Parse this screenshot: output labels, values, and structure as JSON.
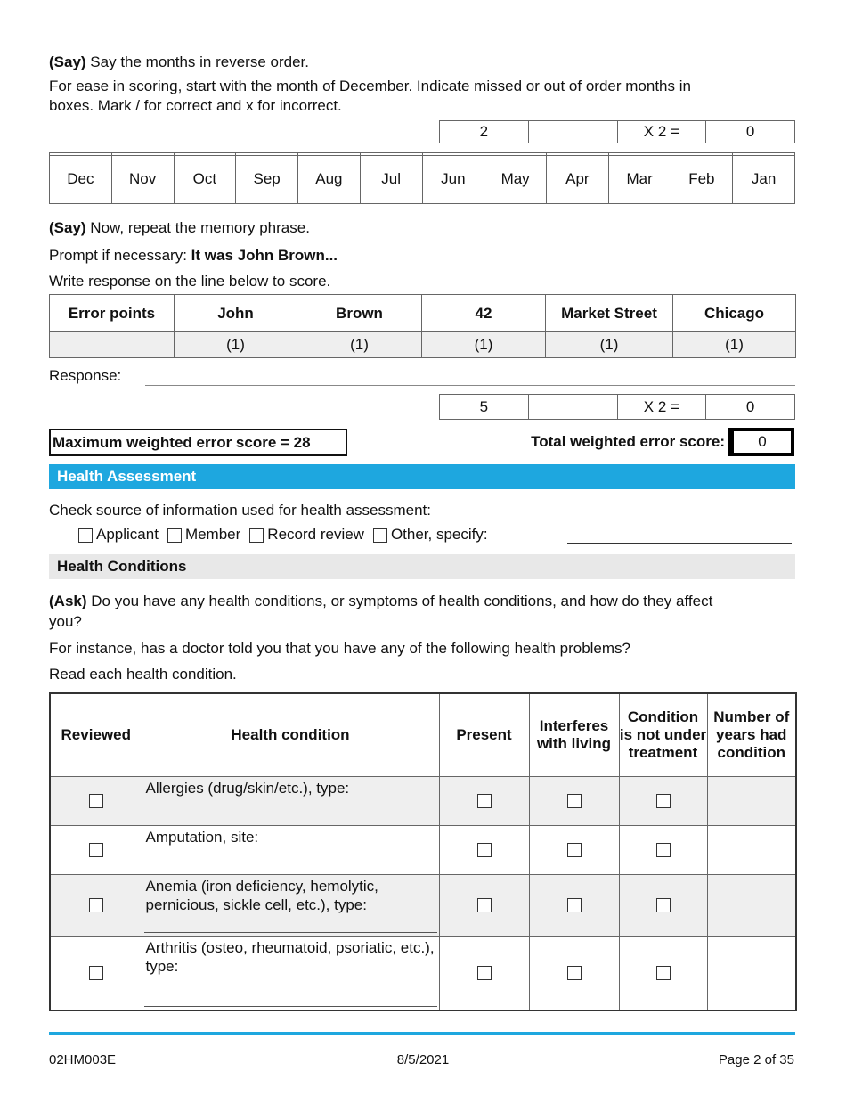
{
  "intro": {
    "say_label": "(Say)",
    "say_text": " Say the months in reverse order.",
    "instruction_line1": "For ease in scoring, start with the month of December. Indicate missed or out of order months in",
    "instruction_line2": "boxes. Mark / for correct and x for incorrect."
  },
  "months_score": {
    "weight": "2",
    "errors": "",
    "multiplier": "X 2 =",
    "result": "0"
  },
  "months": [
    "Dec",
    "Nov",
    "Oct",
    "Sep",
    "Aug",
    "Jul",
    "Jun",
    "May",
    "Apr",
    "Mar",
    "Feb",
    "Jan"
  ],
  "memory": {
    "say_label": "(Say)",
    "say_text": " Now, repeat the memory phrase.",
    "prompt_text": "Prompt if necessary:  ",
    "prompt_bold": "It was John Brown...",
    "write_text": "Write response on the line below to score."
  },
  "error_table": {
    "headers": [
      "Error points",
      "John",
      "Brown",
      "42",
      "Market Street",
      "Chicago"
    ],
    "points": [
      "",
      "(1)",
      "(1)",
      "(1)",
      "(1)",
      "(1)"
    ]
  },
  "response_label": "Response:",
  "memory_score": {
    "weight": "5",
    "errors": "",
    "multiplier": "X 2 =",
    "result": "0"
  },
  "max_score": "Maximum weighted error score = 28",
  "total_label": "Total weighted error score:",
  "total_value": "0",
  "health_assessment": {
    "title": "Health Assessment",
    "check_text": "Check source of information used for health assessment:",
    "options": [
      "Applicant",
      "Member",
      "Record review",
      "Other, specify:"
    ]
  },
  "health_conditions": {
    "title": "Health Conditions",
    "ask_label": "(Ask)",
    "ask_text_line1": " Do you have any health conditions, or symptoms of health conditions, and how do they affect",
    "ask_text_line2": "you?",
    "instance_text": "For instance, has a doctor told you that you have any of the following health problems?",
    "read_text": "Read each health condition.",
    "headers": [
      "Reviewed",
      "Health condition",
      "Present",
      "Interferes with living",
      "Condition is not under treatment",
      "Number of years had condition"
    ],
    "rows": [
      "Allergies (drug/skin/etc.), type:",
      "Amputation, site:",
      "Anemia (iron deficiency, hemolytic, pernicious, sickle cell, etc.), type:",
      "Arthritis (osteo, rheumatoid, psoriatic, etc.), type:"
    ]
  },
  "footer": {
    "form_id": "02HM003E",
    "date": "8/5/2021",
    "page": "Page 2 of 35"
  },
  "colors": {
    "accent": "#1ea7df",
    "section_gray": "#e8e8e8"
  }
}
